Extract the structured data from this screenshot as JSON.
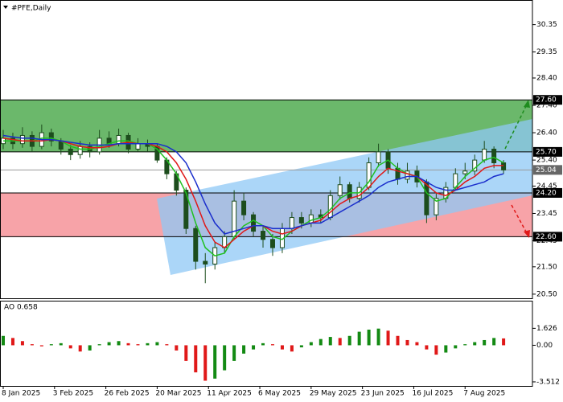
{
  "chart_data": [
    {
      "type": "candlestick",
      "title": "#PFE,Daily",
      "x": [
        0,
        3,
        6,
        9,
        12,
        15,
        18,
        21,
        24,
        27,
        30,
        33,
        36,
        39,
        42,
        45,
        48,
        51,
        54,
        57,
        60,
        63,
        66,
        69,
        72,
        75,
        78,
        81,
        84,
        87,
        90,
        93,
        96,
        99,
        102,
        105,
        108,
        111,
        114,
        117,
        120,
        123,
        126,
        129,
        132,
        135,
        138,
        141,
        144,
        147,
        150,
        153,
        156
      ],
      "open": [
        26.0,
        26.2,
        26.0,
        26.3,
        25.9,
        26.4,
        26.1,
        25.8,
        25.6,
        25.9,
        25.7,
        26.2,
        26.0,
        26.3,
        25.8,
        26.0,
        25.9,
        25.4,
        24.9,
        24.3,
        22.9,
        21.7,
        21.6,
        22.2,
        22.6,
        23.9,
        23.4,
        22.8,
        22.5,
        22.2,
        22.9,
        23.3,
        23.1,
        23.4,
        23.3,
        24.1,
        24.5,
        24.0,
        24.4,
        25.3,
        25.7,
        25.1,
        24.7,
        25.0,
        24.6,
        23.4,
        24.0,
        24.4,
        24.9,
        25.0,
        25.4,
        25.8,
        25.3
      ],
      "high": [
        26.5,
        26.4,
        26.6,
        26.45,
        26.7,
        26.55,
        26.2,
        25.95,
        26.1,
        26.05,
        26.5,
        26.45,
        26.55,
        26.4,
        26.2,
        26.15,
        26.0,
        25.5,
        25.0,
        24.4,
        23.0,
        22.0,
        22.4,
        22.8,
        24.3,
        24.2,
        23.5,
        23.0,
        22.7,
        23.1,
        23.5,
        23.5,
        23.6,
        23.6,
        24.3,
        24.8,
        24.6,
        24.6,
        25.5,
        26.0,
        25.8,
        25.3,
        25.3,
        25.2,
        24.7,
        24.2,
        24.6,
        25.1,
        25.3,
        25.6,
        26.1,
        25.9,
        25.4
      ],
      "low": [
        25.8,
        25.8,
        25.85,
        25.7,
        25.8,
        25.9,
        25.6,
        25.4,
        25.45,
        25.5,
        25.6,
        25.85,
        25.9,
        25.65,
        25.7,
        25.7,
        25.3,
        24.7,
        24.1,
        22.7,
        21.4,
        20.9,
        21.4,
        22.0,
        22.5,
        23.2,
        22.6,
        22.2,
        21.9,
        22.0,
        22.7,
        22.9,
        22.95,
        23.1,
        23.2,
        23.95,
        23.85,
        23.85,
        24.3,
        25.15,
        24.9,
        24.5,
        24.55,
        24.4,
        23.1,
        23.2,
        23.85,
        24.3,
        24.7,
        24.85,
        25.3,
        25.1,
        24.9
      ],
      "close": [
        26.2,
        26.0,
        26.3,
        25.9,
        26.4,
        26.1,
        25.8,
        25.6,
        25.9,
        25.7,
        26.2,
        26.0,
        26.3,
        25.8,
        26.0,
        25.9,
        25.4,
        24.9,
        24.3,
        22.9,
        21.7,
        21.6,
        22.2,
        22.6,
        23.9,
        23.4,
        22.8,
        22.5,
        22.2,
        22.9,
        23.3,
        23.1,
        23.4,
        23.3,
        24.1,
        24.5,
        24.0,
        24.4,
        25.3,
        25.7,
        25.1,
        24.7,
        25.0,
        24.6,
        23.4,
        24.0,
        24.4,
        24.9,
        25.0,
        25.4,
        25.8,
        25.3,
        25.04
      ],
      "candle_color": "#1d4d1d",
      "series": [
        {
          "color": "#20c020",
          "values": [
            26.1,
            26.1,
            26.1,
            26.1,
            26.2,
            26.2,
            26.1,
            25.9,
            25.8,
            25.8,
            25.9,
            26.0,
            26.1,
            26.1,
            26.0,
            26.0,
            25.8,
            25.4,
            24.9,
            24.2,
            23.1,
            22.2,
            21.9,
            22.0,
            22.6,
            23.0,
            23.2,
            23.0,
            22.6,
            22.5,
            22.8,
            23.0,
            23.2,
            23.3,
            23.6,
            24.0,
            24.2,
            24.2,
            24.6,
            25.2,
            25.4,
            25.1,
            24.9,
            24.8,
            24.2,
            23.9,
            24.0,
            24.4,
            24.8,
            25.1,
            25.4,
            25.5,
            25.3
          ]
        },
        {
          "color": "#e01818",
          "values": [
            26.2,
            26.15,
            26.1,
            26.1,
            26.1,
            26.15,
            26.1,
            26.0,
            25.9,
            25.85,
            25.85,
            25.9,
            26.0,
            26.05,
            26.0,
            26.0,
            25.9,
            25.7,
            25.3,
            24.7,
            23.9,
            23.0,
            22.4,
            22.2,
            22.5,
            22.8,
            23.0,
            23.0,
            22.8,
            22.7,
            22.8,
            23.0,
            23.1,
            23.2,
            23.5,
            23.8,
            24.0,
            24.1,
            24.4,
            24.8,
            25.1,
            25.0,
            24.9,
            24.8,
            24.5,
            24.2,
            24.1,
            24.3,
            24.6,
            24.8,
            25.1,
            25.2,
            25.2
          ]
        },
        {
          "color": "#1a2ecc",
          "values": [
            26.3,
            26.25,
            26.2,
            26.2,
            26.15,
            26.15,
            26.1,
            26.05,
            26.0,
            25.95,
            25.95,
            25.95,
            26.0,
            26.0,
            26.0,
            26.0,
            26.0,
            25.9,
            25.7,
            25.3,
            24.6,
            23.8,
            23.1,
            22.7,
            22.8,
            22.9,
            23.0,
            23.0,
            22.9,
            22.9,
            22.9,
            23.0,
            23.1,
            23.1,
            23.3,
            23.5,
            23.7,
            23.9,
            24.1,
            24.4,
            24.6,
            24.7,
            24.8,
            24.8,
            24.6,
            24.4,
            24.3,
            24.3,
            24.4,
            24.5,
            24.6,
            24.8,
            24.9
          ]
        }
      ],
      "zones": [
        {
          "from": 25.7,
          "to": 27.6,
          "color": "#6bb86b"
        },
        {
          "from": 22.6,
          "to": 24.2,
          "color": "#f7a3a8"
        }
      ],
      "levels": [
        {
          "value": 27.6,
          "label": "27.60",
          "color": "#000000"
        },
        {
          "value": 25.7,
          "label": "25.70",
          "color": "#000000"
        },
        {
          "value": 25.04,
          "label": "25.04",
          "color": "#9a9a9a"
        },
        {
          "value": 24.2,
          "label": "24.20",
          "color": "#000000"
        },
        {
          "value": 22.6,
          "label": "22.60",
          "color": "#000000"
        }
      ],
      "xlim": [
        -1,
        164
      ],
      "ylim": [
        20.32,
        31.25
      ],
      "yticks": [
        30.35,
        29.35,
        {
          "value": 28.4,
          "label": "28.40"
        },
        {
          "value": 27.4,
          "label": "27.40"
        },
        {
          "value": 26.4,
          "label": "26.40"
        },
        {
          "value": 25.4,
          "label": "25.40"
        },
        24.45,
        23.45,
        22.45,
        {
          "value": 21.5,
          "label": "21.50"
        },
        {
          "value": 20.5,
          "label": "20.50"
        }
      ],
      "xticks": [
        {
          "value": 0,
          "label": "8 Jan 2025"
        },
        {
          "value": 16,
          "label": "3 Feb 2025"
        },
        {
          "value": 32,
          "label": "26 Feb 2025"
        },
        {
          "value": 48,
          "label": "20 Mar 2025"
        },
        {
          "value": 64,
          "label": "11 Apr 2025"
        },
        {
          "value": 80,
          "label": "6 May 2025"
        },
        {
          "value": 96,
          "label": "29 May 2025"
        },
        {
          "value": 112,
          "label": "23 Jun 2025"
        },
        {
          "value": 128,
          "label": "16 Jul 2025"
        },
        {
          "value": 144,
          "label": "7 Aug 2025"
        }
      ]
    },
    {
      "type": "bar",
      "title": "AO 0.658",
      "up_color": "#138a13",
      "down_color": "#e01818",
      "values": [
        0.9,
        0.7,
        0.4,
        0.1,
        -0.1,
        0.1,
        0.2,
        -0.3,
        -0.6,
        -0.5,
        0.1,
        0.3,
        0.4,
        0.2,
        0.1,
        0.2,
        0.3,
        0.1,
        -0.5,
        -1.5,
        -2.6,
        -3.4,
        -3.2,
        -2.4,
        -1.5,
        -0.8,
        -0.4,
        0.2,
        0.1,
        -0.4,
        -0.6,
        -0.2,
        0.3,
        0.6,
        0.8,
        0.7,
        0.9,
        1.3,
        1.5,
        1.6,
        1.4,
        0.9,
        0.5,
        0.3,
        -0.4,
        -0.9,
        -0.7,
        -0.3,
        0.1,
        0.3,
        0.5,
        0.7,
        0.658
      ],
      "ylim": [
        -3.9,
        4.2
      ],
      "yticks": [
        1.626,
        {
          "value": 0,
          "label": "0.00"
        },
        -3.512
      ]
    }
  ]
}
